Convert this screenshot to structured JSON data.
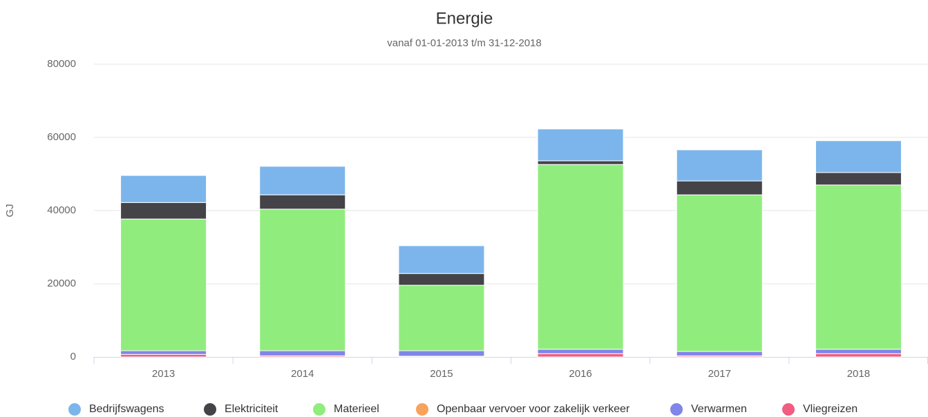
{
  "chart_data": {
    "type": "stacked_bar",
    "title": "Energie",
    "subtitle": "vanaf 01-01-2013 t/m 31-12-2018",
    "y_label": "GJ",
    "categories": [
      "2013",
      "2014",
      "2015",
      "2016",
      "2017",
      "2018"
    ],
    "series": [
      {
        "name": "Bedrijfswagens",
        "color": "#7cb5ec",
        "values": [
          7400,
          7800,
          7600,
          8700,
          8500,
          8700
        ]
      },
      {
        "name": "Elektriciteit",
        "color": "#434348",
        "values": [
          4500,
          3900,
          3200,
          1000,
          3800,
          3400
        ]
      },
      {
        "name": "Materieel",
        "color": "#90ed7d",
        "values": [
          36000,
          38700,
          17900,
          50500,
          42800,
          44900
        ]
      },
      {
        "name": "Openbaar vervoer voor zakelijk verkeer",
        "color": "#f7a35c",
        "values": [
          0,
          0,
          0,
          0,
          0,
          0
        ]
      },
      {
        "name": "Verwarmen",
        "color": "#8085e9",
        "values": [
          1000,
          1400,
          1500,
          1200,
          1200,
          1200
        ]
      },
      {
        "name": "Vliegreizen",
        "color": "#f15c80",
        "values": [
          700,
          300,
          200,
          900,
          300,
          900
        ]
      }
    ],
    "ylim": [
      0,
      80000
    ],
    "yticks": [
      0,
      20000,
      40000,
      60000,
      80000
    ],
    "grid": true
  }
}
